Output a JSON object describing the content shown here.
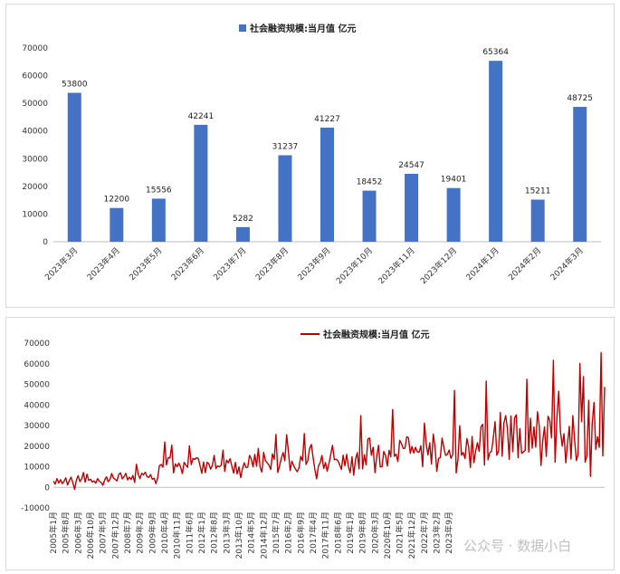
{
  "chart_data": [
    {
      "type": "bar",
      "legend": "社会融资规模:当月值 亿元",
      "legend_position": "top",
      "categories": [
        "2023年3月",
        "2023年4月",
        "2023年5月",
        "2023年6月",
        "2023年7月",
        "2023年8月",
        "2023年9月",
        "2023年10月",
        "2023年11月",
        "2023年12月",
        "2024年1月",
        "2024年2月",
        "2024年3月"
      ],
      "values": [
        53800,
        12200,
        15556,
        42241,
        5282,
        31237,
        41227,
        18452,
        24547,
        19401,
        65364,
        15211,
        48725
      ],
      "ylim": [
        0,
        70000
      ],
      "yticks": [
        0,
        10000,
        20000,
        30000,
        40000,
        50000,
        60000,
        70000
      ],
      "grid": false,
      "color": "#4472c4"
    },
    {
      "type": "line",
      "legend": "社会融资规模:当月值 亿元",
      "legend_position": "top",
      "ylim": [
        -10000,
        70000
      ],
      "yticks": [
        -10000,
        0,
        10000,
        20000,
        30000,
        40000,
        50000,
        60000,
        70000
      ],
      "grid": false,
      "color": "#c00000",
      "xtick_labels": [
        "2005年1月",
        "2005年8月",
        "2006年3月",
        "2006年10月",
        "2007年5月",
        "2007年12月",
        "2008年7月",
        "2009年2月",
        "2009年9月",
        "2010年4月",
        "2010年11月",
        "2011年6月",
        "2012年1月",
        "2012年8月",
        "2013年3月",
        "2013年10月",
        "2014年5月",
        "2014年12月",
        "2015年7月",
        "2016年2月",
        "2016年9月",
        "2017年4月",
        "2017年11月",
        "2018年6月",
        "2019年1月",
        "2019年8月",
        "2020年3月",
        "2020年10月",
        "2021年5月",
        "2021年12月",
        "2022年7月",
        "2023年2月",
        "2023年9月"
      ],
      "xtick_step_months": 7,
      "start_month_label": "2005年1月",
      "values": [
        3000,
        1500,
        4200,
        2100,
        3700,
        1800,
        2900,
        4600,
        1100,
        3300,
        4900,
        2200,
        -1000,
        3500,
        5600,
        2800,
        4100,
        7200,
        2500,
        6400,
        3400,
        3900,
        2600,
        3100,
        2000,
        4200,
        2900,
        2400,
        1000,
        3600,
        5100,
        2700,
        3800,
        6700,
        4500,
        3900,
        3100,
        6300,
        7000,
        4100,
        5200,
        6800,
        3600,
        4900,
        3800,
        5800,
        2300,
        11200,
        6500,
        4200,
        6800,
        6100,
        7300,
        5100,
        4800,
        6200,
        3900,
        4400,
        1800,
        4500,
        10500,
        11100,
        9800,
        22000,
        10900,
        14500,
        14200,
        20500,
        7000,
        11400,
        10000,
        11700,
        9900,
        6600,
        12100,
        10800,
        9700,
        20200,
        11000,
        14000,
        13500,
        14400,
        14000,
        10500,
        6800,
        12300,
        7100,
        12100,
        11400,
        8800,
        10800,
        15500,
        9100,
        10400,
        9900,
        10800,
        18000,
        7700,
        13200,
        11900,
        13900,
        10400,
        6900,
        12100,
        6500,
        9900,
        4700,
        9100,
        11900,
        9600,
        9800,
        15500,
        13800,
        9900,
        16000,
        10200,
        18900,
        9700,
        7400,
        17000,
        13000,
        11900,
        10800,
        8700,
        16200,
        13600,
        25700,
        7200,
        10300,
        14100,
        16900,
        12900,
        25500,
        17600,
        8100,
        12700,
        10500,
        8900,
        7600,
        9400,
        15000,
        12900,
        26100,
        11100,
        13000,
        18800,
        20800,
        14500,
        8600,
        4100,
        10300,
        11900,
        15500,
        9100,
        12000,
        7800,
        11700,
        16100,
        20400,
        13400,
        13700,
        12900,
        11000,
        8700,
        15600,
        10500,
        16000,
        9900,
        7100,
        14900,
        5900,
        13600,
        16800,
        9000,
        34800,
        9000,
        15700,
        10900,
        23400,
        24000,
        15600,
        19500,
        7100,
        15000,
        20400,
        9900,
        10000,
        17400,
        15300,
        10300,
        18000,
        14800,
        37800,
        15000,
        16100,
        12500,
        22800,
        21300,
        18900,
        19000,
        24600,
        24000,
        16500,
        19800,
        16600,
        19400,
        17200,
        17000,
        20200,
        10000,
        31200,
        21300,
        15700,
        21600,
        11300,
        25800,
        19800,
        7800,
        14000,
        14500,
        23900,
        19300,
        15500,
        16000,
        18100,
        14100,
        15900,
        47000,
        7000,
        13700,
        29900,
        15600,
        16900,
        14000,
        23700,
        19900,
        9600,
        24700,
        11900,
        17500,
        21700,
        17500,
        29400,
        30600,
        10800,
        51600,
        13300,
        16800,
        17600,
        24000,
        31900,
        15600,
        17600,
        36300,
        15100,
        31200,
        34800,
        28600,
        13600,
        34600,
        17300,
        33700,
        35200,
        14400,
        28500,
        16500,
        17100,
        17900,
        52400,
        17100,
        33500,
        19000,
        29300,
        19500,
        36700,
        29800,
        10600,
        22800,
        29400,
        15000,
        34500,
        32400,
        24000,
        61700,
        12200,
        33800,
        46600,
        27100,
        20000,
        26000,
        11900,
        21100,
        29600,
        13700,
        34800,
        23300,
        13000,
        16000,
        60100,
        31900,
        53800,
        12200,
        15556,
        42241,
        5282,
        31237,
        41227,
        18452,
        24547,
        19401,
        65364,
        15211,
        48725
      ]
    }
  ],
  "watermark": "公众号 · 数据小白"
}
